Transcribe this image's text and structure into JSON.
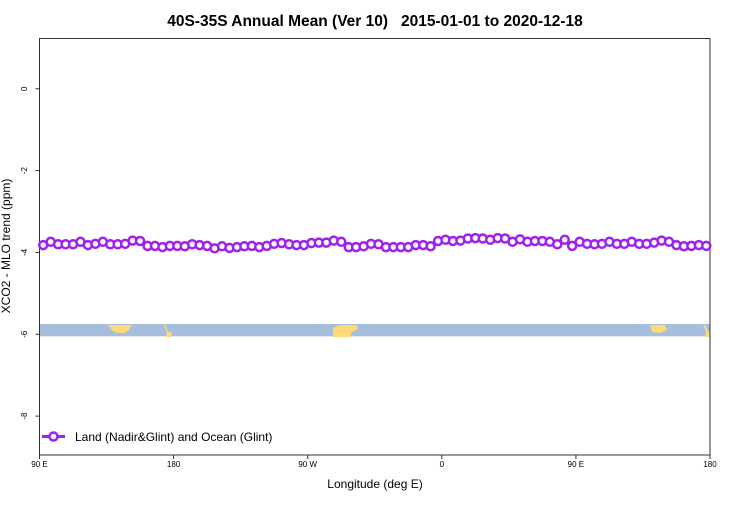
{
  "chart_data": {
    "type": "line",
    "title": "40S-35S Annual Mean (Ver 10)   2015-01-01 to 2020-12-18",
    "xlabel": "Longitude (deg E)",
    "ylabel": "XCO2 - MLO trend (ppm)",
    "xlim": [
      90,
      540
    ],
    "ylim": [
      -8.95,
      1.24
    ],
    "x_ticks": [
      {
        "value": 90,
        "label": "90 E"
      },
      {
        "value": 180,
        "label": "180"
      },
      {
        "value": 270,
        "label": "90 W"
      },
      {
        "value": 360,
        "label": "0"
      },
      {
        "value": 450,
        "label": "90 E"
      },
      {
        "value": 540,
        "label": "180"
      }
    ],
    "y_ticks": [
      {
        "value": 0,
        "label": "0"
      },
      {
        "value": -2,
        "label": "-2"
      },
      {
        "value": -4,
        "label": "-4"
      },
      {
        "value": -6,
        "label": "-6"
      },
      {
        "value": -8,
        "label": "-8"
      }
    ],
    "grid": false,
    "legend_position": "bottom-left",
    "colors": {
      "series": "#a020f0",
      "ocean": "#a6bddb",
      "land": "#fed976"
    },
    "land_ocean_strip": {
      "y_range": [
        -5.75,
        -6.05
      ]
    },
    "series": [
      {
        "name": "Land (Nadir&Glint) and Ocean (Glint)",
        "x_start": 92.5,
        "x_step": 5,
        "values": [
          -3.82,
          -3.74,
          -3.8,
          -3.8,
          -3.8,
          -3.74,
          -3.82,
          -3.79,
          -3.74,
          -3.8,
          -3.8,
          -3.79,
          -3.71,
          -3.72,
          -3.84,
          -3.84,
          -3.87,
          -3.84,
          -3.84,
          -3.85,
          -3.8,
          -3.82,
          -3.84,
          -3.9,
          -3.85,
          -3.89,
          -3.87,
          -3.85,
          -3.84,
          -3.87,
          -3.84,
          -3.79,
          -3.77,
          -3.8,
          -3.82,
          -3.82,
          -3.77,
          -3.76,
          -3.76,
          -3.71,
          -3.74,
          -3.87,
          -3.87,
          -3.85,
          -3.79,
          -3.8,
          -3.87,
          -3.87,
          -3.87,
          -3.87,
          -3.82,
          -3.82,
          -3.85,
          -3.72,
          -3.69,
          -3.72,
          -3.71,
          -3.66,
          -3.65,
          -3.66,
          -3.69,
          -3.65,
          -3.66,
          -3.74,
          -3.68,
          -3.74,
          -3.72,
          -3.72,
          -3.74,
          -3.8,
          -3.69,
          -3.84,
          -3.74,
          -3.79,
          -3.8,
          -3.79,
          -3.74,
          -3.79,
          -3.79,
          -3.74,
          -3.79,
          -3.79,
          -3.76,
          -3.71,
          -3.74,
          -3.82,
          -3.85,
          -3.84,
          -3.82,
          -3.84
        ]
      }
    ]
  }
}
